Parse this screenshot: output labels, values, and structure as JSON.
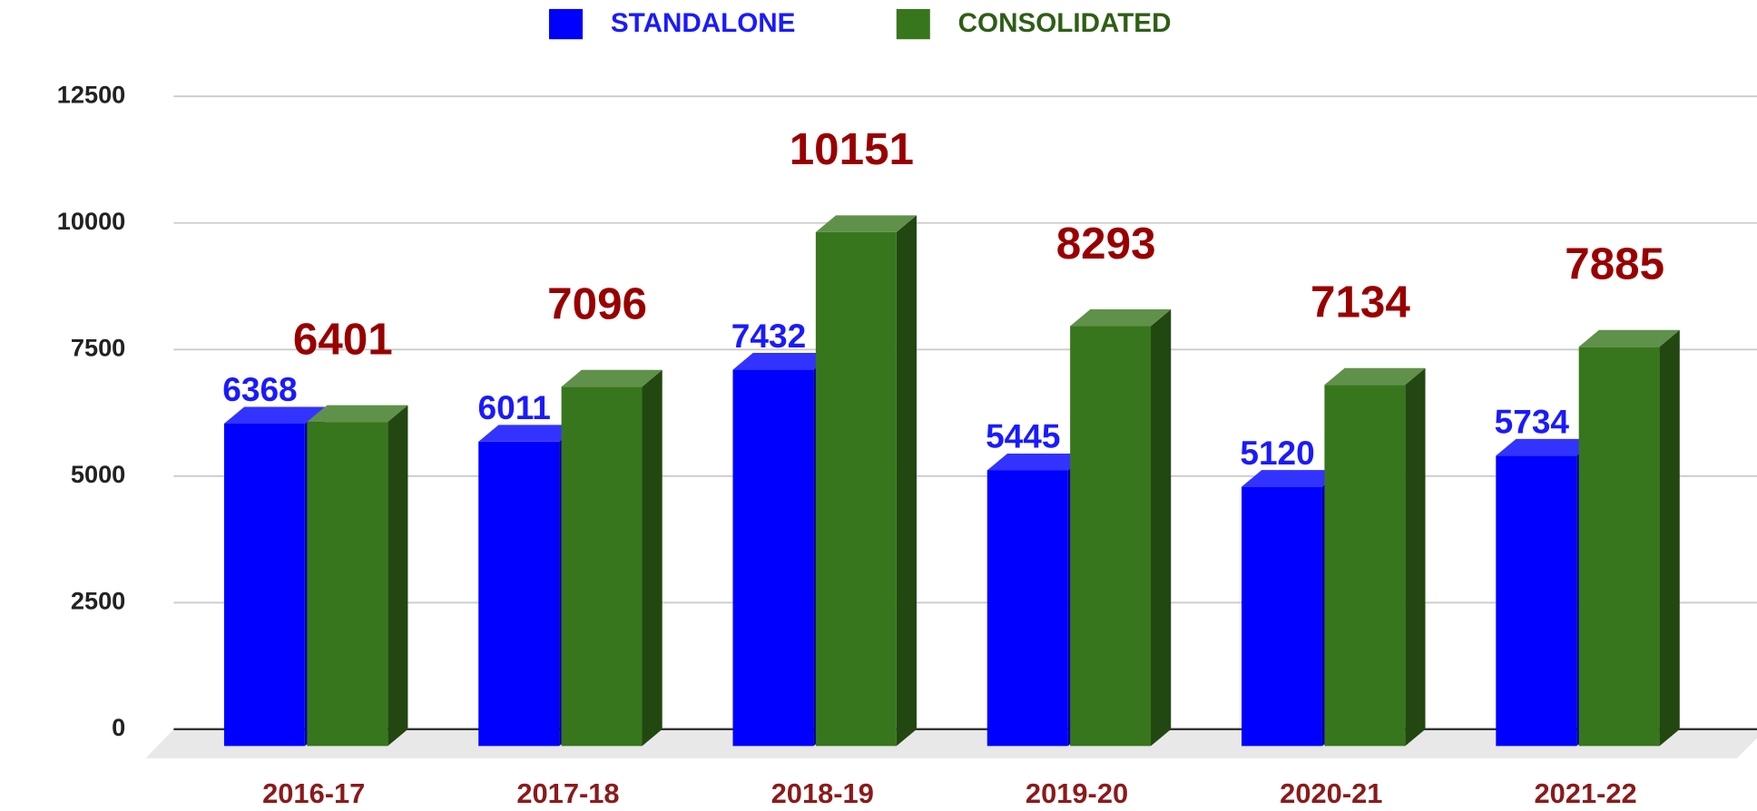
{
  "chart_data": {
    "type": "bar",
    "categories": [
      "2016-17",
      "2017-18",
      "2018-19",
      "2019-20",
      "2020-21",
      "2021-22"
    ],
    "series": [
      {
        "name": "STANDALONE",
        "color": "#0000ff",
        "values": [
          6368,
          6011,
          7432,
          5445,
          5120,
          5734
        ]
      },
      {
        "name": "CONSOLIDATED",
        "color": "#38761d",
        "values": [
          6401,
          7096,
          10151,
          8293,
          7134,
          7885
        ]
      }
    ],
    "ylim": [
      0,
      12500
    ],
    "yticks": [
      0,
      2500,
      5000,
      7500,
      10000,
      12500
    ],
    "grid": true,
    "legend": "top"
  }
}
